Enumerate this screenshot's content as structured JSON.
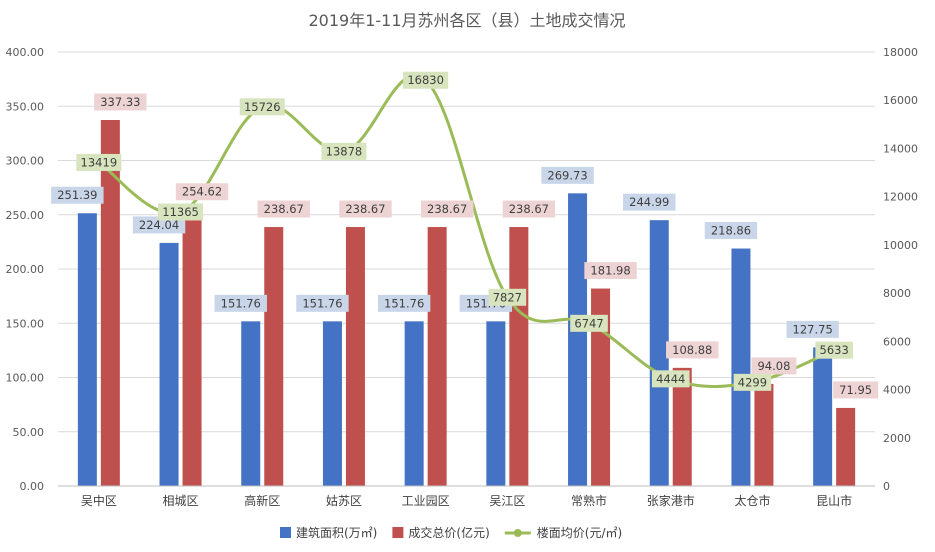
{
  "chart_data": {
    "type": "bar",
    "title": "2019年1-11月苏州各区（县）土地成交情况",
    "categories": [
      "吴中区",
      "相城区",
      "高新区",
      "姑苏区",
      "工业园区",
      "吴江区",
      "常熟市",
      "张家港市",
      "太仓市",
      "昆山市"
    ],
    "series": [
      {
        "name": "建筑面积(万㎡)",
        "type": "bar",
        "axis": "left",
        "color": "#4472C4",
        "label_bg": "#C9D6EA",
        "values": [
          251.39,
          224.04,
          151.76,
          151.76,
          151.76,
          151.76,
          269.73,
          244.99,
          218.86,
          127.75
        ],
        "labels": [
          "251.39",
          "224.04",
          "151.76",
          "151.76",
          "151.76",
          "151.76",
          "269.73",
          "244.99",
          "218.86",
          "127.75"
        ]
      },
      {
        "name": "成交总价(亿元)",
        "type": "bar",
        "axis": "left",
        "color": "#C0504D",
        "label_bg": "#EDD3D3",
        "values": [
          337.33,
          254.62,
          238.67,
          238.67,
          238.67,
          238.67,
          181.98,
          108.88,
          94.08,
          71.95
        ],
        "labels": [
          "337.33",
          "254.62",
          "238.67",
          "238.67",
          "238.67",
          "238.67",
          "181.98",
          "108.88",
          "94.08",
          "71.95"
        ]
      },
      {
        "name": "楼面均价(元/㎡)",
        "type": "line",
        "axis": "right",
        "color": "#9BBB59",
        "label_bg": "#D7E4BD",
        "values": [
          13419,
          11365,
          15726,
          13878,
          16830,
          7827,
          6747,
          4444,
          4299,
          5633
        ],
        "labels": [
          "13419",
          "11365",
          "15726",
          "13878",
          "16830",
          "7827",
          "6747",
          "4444",
          "4299",
          "5633"
        ]
      }
    ],
    "left_axis": {
      "ylim": [
        0,
        400
      ],
      "ticks": [
        0,
        50,
        100,
        150,
        200,
        250,
        300,
        350,
        400
      ],
      "tick_labels": [
        "0.00",
        "50.00",
        "100.00",
        "150.00",
        "200.00",
        "250.00",
        "300.00",
        "350.00",
        "400.00"
      ]
    },
    "right_axis": {
      "ylim": [
        0,
        18000
      ],
      "ticks": [
        0,
        2000,
        4000,
        6000,
        8000,
        10000,
        12000,
        14000,
        16000,
        18000
      ],
      "tick_labels": [
        "0",
        "2000",
        "4000",
        "6000",
        "8000",
        "10000",
        "12000",
        "14000",
        "16000",
        "18000"
      ]
    },
    "grid": true,
    "legend_position": "bottom"
  }
}
